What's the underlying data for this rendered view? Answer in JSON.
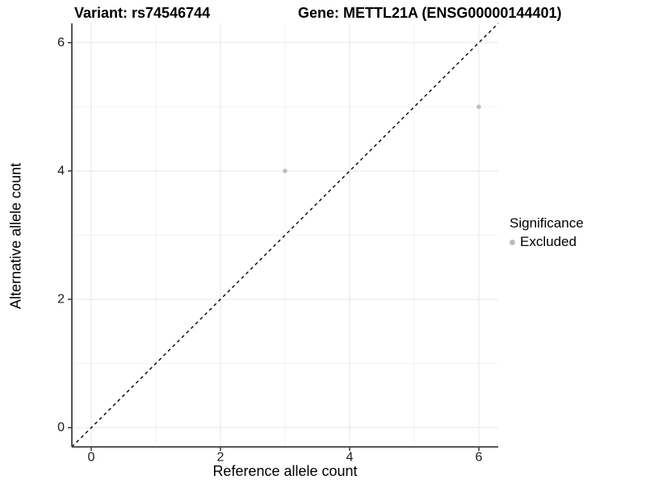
{
  "chart_data": {
    "type": "scatter",
    "title_left": "Variant: rs74546744",
    "title_right": "Gene: METTL21A (ENSG00000144401)",
    "xlabel": "Reference allele count",
    "ylabel": "Alternative allele count",
    "xlim": [
      -0.3,
      6.3
    ],
    "ylim": [
      -0.3,
      6.3
    ],
    "x_ticks": [
      0,
      2,
      4,
      6
    ],
    "y_ticks": [
      0,
      2,
      4,
      6
    ],
    "x_minor_ticks": [
      1,
      3,
      5
    ],
    "y_minor_ticks": [
      1,
      3,
      5
    ],
    "grid": "major and minor gridlines on, white panel background",
    "identity_line": {
      "slope": 1,
      "intercept": 0,
      "style": "dashed",
      "color": "#000000"
    },
    "series": [
      {
        "name": "Excluded",
        "color": "#bdbdbd",
        "points": [
          [
            3,
            4
          ],
          [
            6,
            5
          ]
        ]
      }
    ],
    "legend": {
      "title": "Significance",
      "position": "right",
      "entries": [
        {
          "label": "Excluded",
          "color": "#bdbdbd"
        }
      ]
    },
    "colors": {
      "grid_major": "#e7e7e7",
      "grid_minor": "#f2f2f2",
      "axis": "#404040",
      "tick_text": "#1a1a1a",
      "point": "#bdbdbd",
      "background": "#ffffff"
    }
  }
}
